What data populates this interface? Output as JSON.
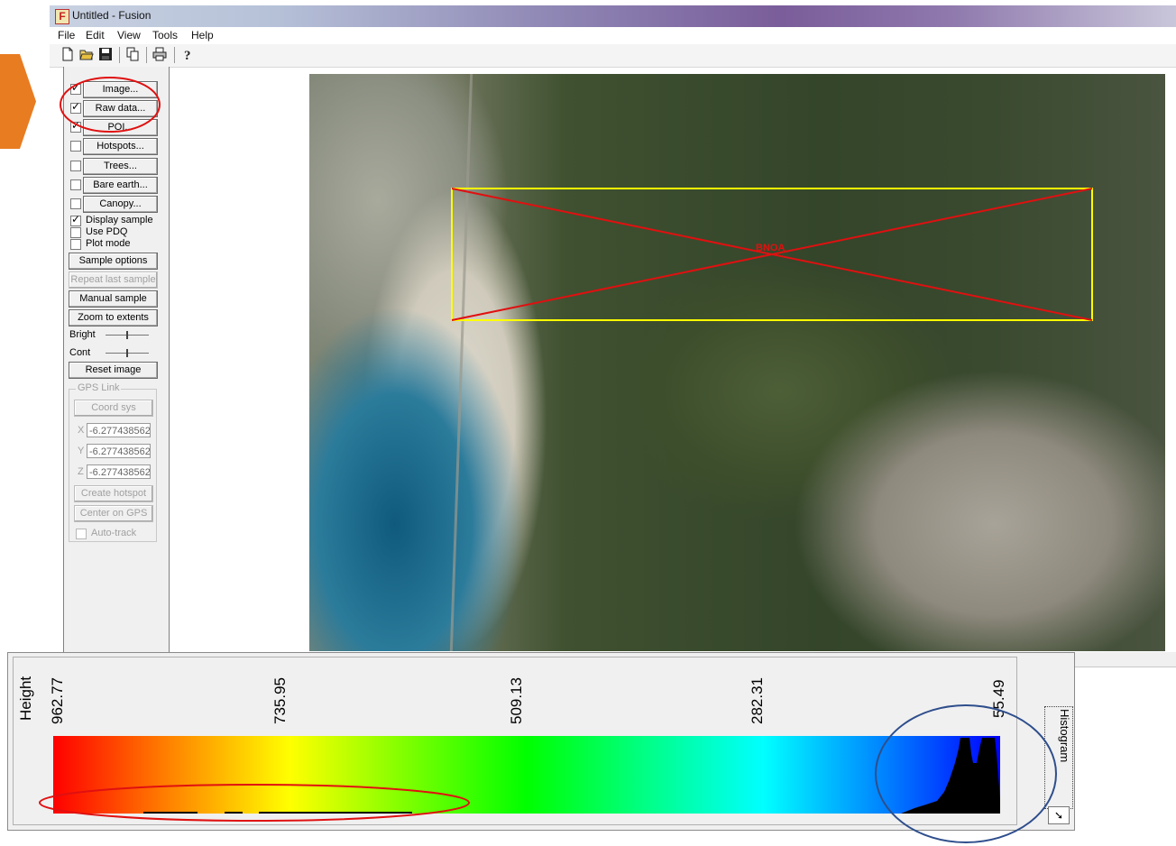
{
  "window": {
    "title": "Untitled - Fusion",
    "icon_letter": "F"
  },
  "menu": [
    "File",
    "Edit",
    "View",
    "Tools",
    "Help"
  ],
  "toolbar_icons": [
    "new-file-icon",
    "open-folder-icon",
    "save-icon",
    "copy-icon",
    "print-icon",
    "help-icon"
  ],
  "panel": {
    "layers": [
      {
        "label": "Image...",
        "checked": true
      },
      {
        "label": "Raw data...",
        "checked": true
      },
      {
        "label": "POI...",
        "checked": true
      },
      {
        "label": "Hotspots...",
        "checked": false
      },
      {
        "label": "Trees...",
        "checked": false
      },
      {
        "label": "Bare earth...",
        "checked": false
      },
      {
        "label": "Canopy...",
        "checked": false
      }
    ],
    "options": [
      {
        "label": "Display sample",
        "checked": true
      },
      {
        "label": "Use PDQ",
        "checked": false
      },
      {
        "label": "Plot mode",
        "checked": false
      }
    ],
    "buttons": {
      "sample_options": "Sample options",
      "repeat_last_sample": "Repeat last sample",
      "manual_sample": "Manual sample",
      "zoom_to_extents": "Zoom to extents",
      "reset_image": "Reset image"
    },
    "bright_label": "Bright",
    "cont_label": "Cont",
    "gps": {
      "legend": "GPS Link",
      "coord_sys": "Coord sys",
      "x_label": "X",
      "y_label": "Y",
      "z_label": "Z",
      "x_value": "-6.277438562",
      "y_value": "-6.277438562",
      "z_value": "-6.277438562",
      "create_hotspot": "Create hotspot",
      "center_on_gps": "Center on GPS",
      "auto_track": "Auto-track"
    }
  },
  "map": {
    "box_label": "BNOA",
    "box_color": "#ffff00",
    "cross_color": "#e01010"
  },
  "histogram": {
    "axis_label": "Height",
    "ticks": [
      "962.77",
      "735.95",
      "509.13",
      "282.31",
      "55.49"
    ],
    "tab_label": "Histogram",
    "tab_button": "➘"
  },
  "annotations": {
    "circle_color": "#e01010",
    "ellipse_blue": "#2e4e8c",
    "arrow_color": "#e87c21"
  }
}
